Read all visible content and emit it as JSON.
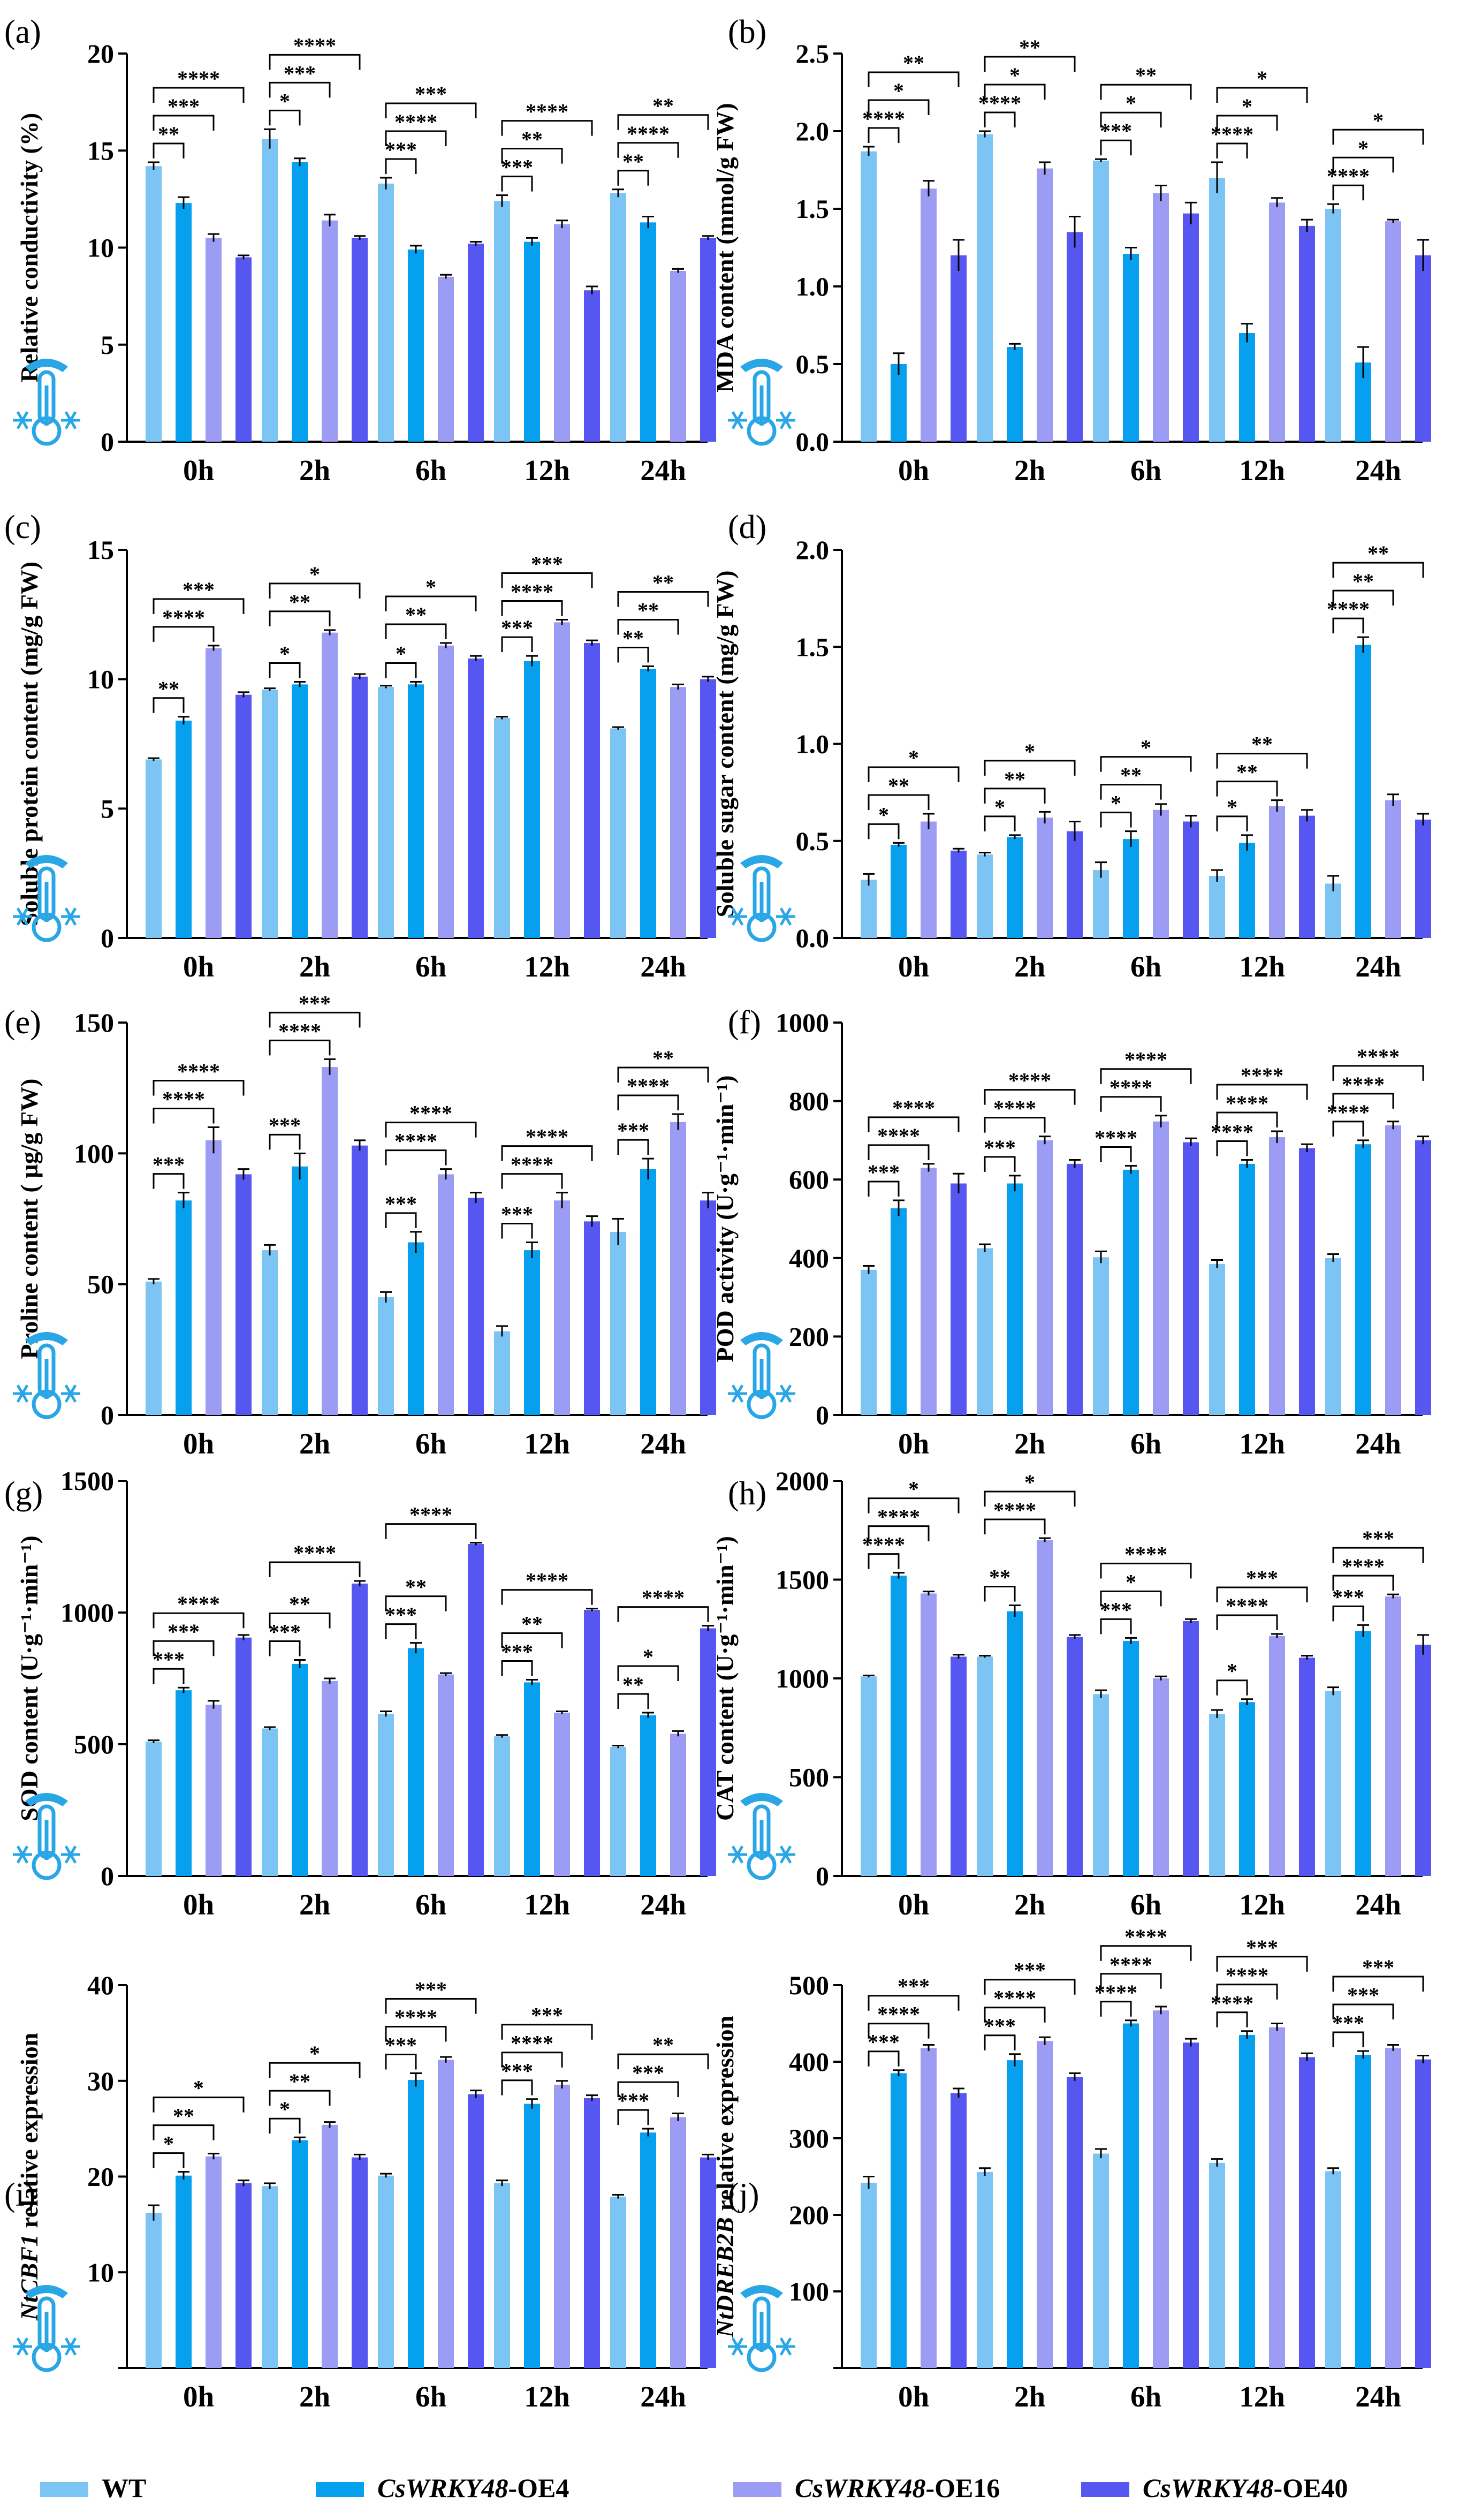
{
  "legend": [
    {
      "key": "wt",
      "label": "WT",
      "color": "#7cc4f4"
    },
    {
      "key": "oe4",
      "label_italic": "CsWRKY48",
      "label_rest": "-OE4",
      "color": "#06a0ee"
    },
    {
      "key": "oe16",
      "label_italic": "CsWRKY48",
      "label_rest": "-OE16",
      "color": "#9c9cf4"
    },
    {
      "key": "oe40",
      "label_italic": "CsWRKY48",
      "label_rest": "-OE40",
      "color": "#5656f0"
    }
  ],
  "chart_data": [
    {
      "panel": "(a)",
      "type": "bar",
      "ylabel": "Relative conductivity (%)",
      "ylim": [
        0,
        20
      ],
      "yticks": [
        0,
        5,
        10,
        15,
        20
      ],
      "categories": [
        "0h",
        "2h",
        "6h",
        "12h",
        "24h"
      ],
      "series": [
        {
          "name": "WT",
          "values": [
            14.2,
            15.6,
            13.3,
            12.4,
            12.8
          ],
          "errors": [
            0.2,
            0.5,
            0.3,
            0.3,
            0.2
          ]
        },
        {
          "name": "CsWRKY48-OE4",
          "values": [
            12.3,
            14.4,
            9.9,
            10.3,
            11.3
          ],
          "errors": [
            0.3,
            0.2,
            0.2,
            0.2,
            0.3
          ]
        },
        {
          "name": "CsWRKY48-OE16",
          "values": [
            10.5,
            11.4,
            8.5,
            11.2,
            8.8
          ],
          "errors": [
            0.2,
            0.3,
            0.1,
            0.2,
            0.1
          ]
        },
        {
          "name": "CsWRKY48-OE40",
          "values": [
            9.5,
            10.5,
            10.2,
            7.8,
            10.5
          ],
          "errors": [
            0.1,
            0.1,
            0.1,
            0.2,
            0.1
          ]
        }
      ],
      "significance": [
        [
          "**",
          "***",
          "****"
        ],
        [
          "*",
          "***",
          "****"
        ],
        [
          "***",
          "****",
          "***"
        ],
        [
          "***",
          "**",
          "****"
        ],
        [
          "**",
          "****",
          "**"
        ]
      ]
    },
    {
      "panel": "(b)",
      "type": "bar",
      "ylabel": "MDA content (mmol/g FW)",
      "ylim": [
        0,
        2.5
      ],
      "yticks": [
        "0.0",
        "0.5",
        "1.0",
        "1.5",
        "2.0",
        "2.5"
      ],
      "categories": [
        "0h",
        "2h",
        "6h",
        "12h",
        "24h"
      ],
      "series": [
        {
          "name": "WT",
          "values": [
            1.87,
            1.98,
            1.81,
            1.7,
            1.5
          ],
          "errors": [
            0.03,
            0.02,
            0.01,
            0.1,
            0.03
          ]
        },
        {
          "name": "CsWRKY48-OE4",
          "values": [
            0.5,
            0.61,
            1.21,
            0.7,
            0.51
          ],
          "errors": [
            0.07,
            0.02,
            0.04,
            0.06,
            0.1
          ]
        },
        {
          "name": "CsWRKY48-OE16",
          "values": [
            1.63,
            1.76,
            1.6,
            1.54,
            1.42
          ],
          "errors": [
            0.05,
            0.04,
            0.05,
            0.03,
            0.01
          ]
        },
        {
          "name": "CsWRKY48-OE40",
          "values": [
            1.2,
            1.35,
            1.47,
            1.39,
            1.2
          ],
          "errors": [
            0.1,
            0.1,
            0.07,
            0.04,
            0.1
          ]
        }
      ],
      "significance": [
        [
          "****",
          "*",
          "**"
        ],
        [
          "****",
          "*",
          "**"
        ],
        [
          "***",
          "*",
          "**"
        ],
        [
          "****",
          "*",
          "*"
        ],
        [
          "****",
          "*",
          "*"
        ]
      ]
    },
    {
      "panel": "(c)",
      "type": "bar",
      "ylabel": "Soluble protein content (mg/g FW)",
      "ylim": [
        0,
        15
      ],
      "yticks": [
        0,
        5,
        10,
        15
      ],
      "categories": [
        "0h",
        "2h",
        "6h",
        "12h",
        "24h"
      ],
      "series": [
        {
          "name": "WT",
          "values": [
            6.9,
            9.6,
            9.7,
            8.5,
            8.1
          ],
          "errors": [
            0.05,
            0.05,
            0.05,
            0.05,
            0.05
          ]
        },
        {
          "name": "CsWRKY48-OE4",
          "values": [
            8.4,
            9.8,
            9.8,
            10.7,
            10.4
          ],
          "errors": [
            0.15,
            0.1,
            0.1,
            0.2,
            0.1
          ]
        },
        {
          "name": "CsWRKY48-OE16",
          "values": [
            11.2,
            11.8,
            11.3,
            12.2,
            9.7
          ],
          "errors": [
            0.1,
            0.1,
            0.1,
            0.1,
            0.1
          ]
        },
        {
          "name": "CsWRKY48-OE40",
          "values": [
            9.4,
            10.1,
            10.8,
            11.4,
            10.0
          ],
          "errors": [
            0.1,
            0.1,
            0.1,
            0.1,
            0.1
          ]
        }
      ],
      "significance": [
        [
          "**",
          "****",
          "***"
        ],
        [
          "*",
          "**",
          "*"
        ],
        [
          "*",
          "**",
          "*"
        ],
        [
          "***",
          "****",
          "***"
        ],
        [
          "**",
          "**",
          "**"
        ]
      ]
    },
    {
      "panel": "(d)",
      "type": "bar",
      "ylabel": "Soluble sugar content (mg/g FW)",
      "ylim": [
        0,
        2.0
      ],
      "yticks": [
        "0.0",
        "0.5",
        "1.0",
        "1.5",
        "2.0"
      ],
      "categories": [
        "0h",
        "2h",
        "6h",
        "12h",
        "24h"
      ],
      "series": [
        {
          "name": "WT",
          "values": [
            0.3,
            0.43,
            0.35,
            0.32,
            0.28
          ],
          "errors": [
            0.03,
            0.01,
            0.04,
            0.03,
            0.04
          ]
        },
        {
          "name": "CsWRKY48-OE4",
          "values": [
            0.48,
            0.52,
            0.51,
            0.49,
            1.51
          ],
          "errors": [
            0.01,
            0.01,
            0.04,
            0.04,
            0.04
          ]
        },
        {
          "name": "CsWRKY48-OE16",
          "values": [
            0.6,
            0.62,
            0.66,
            0.68,
            0.71
          ],
          "errors": [
            0.04,
            0.03,
            0.03,
            0.03,
            0.03
          ]
        },
        {
          "name": "CsWRKY48-OE40",
          "values": [
            0.45,
            0.55,
            0.6,
            0.63,
            0.61
          ],
          "errors": [
            0.01,
            0.05,
            0.03,
            0.03,
            0.03
          ]
        }
      ],
      "significance": [
        [
          "*",
          "**",
          "*"
        ],
        [
          "*",
          "**",
          "*"
        ],
        [
          "*",
          "**",
          "*"
        ],
        [
          "*",
          "**",
          "**"
        ],
        [
          "****",
          "**",
          "**"
        ]
      ]
    },
    {
      "panel": "(e)",
      "type": "bar",
      "ylabel": "Proline content ( µg/g FW)",
      "ylim": [
        0,
        150
      ],
      "yticks": [
        0,
        50,
        100,
        150
      ],
      "categories": [
        "0h",
        "2h",
        "6h",
        "12h",
        "24h"
      ],
      "series": [
        {
          "name": "WT",
          "values": [
            51,
            63,
            45,
            32,
            70
          ],
          "errors": [
            1,
            2,
            2,
            2,
            5
          ]
        },
        {
          "name": "CsWRKY48-OE4",
          "values": [
            82,
            95,
            66,
            63,
            94
          ],
          "errors": [
            3,
            5,
            4,
            3,
            4
          ]
        },
        {
          "name": "CsWRKY48-OE16",
          "values": [
            105,
            133,
            92,
            82,
            112
          ],
          "errors": [
            5,
            3,
            2,
            3,
            3
          ]
        },
        {
          "name": "CsWRKY48-OE40",
          "values": [
            92,
            103,
            83,
            74,
            82
          ],
          "errors": [
            2,
            2,
            2,
            2,
            3
          ]
        }
      ],
      "significance": [
        [
          "***",
          "****",
          "****"
        ],
        [
          "***",
          "****",
          "***"
        ],
        [
          "***",
          "****",
          "****"
        ],
        [
          "***",
          "****",
          "****"
        ],
        [
          "***",
          "****",
          "**"
        ]
      ]
    },
    {
      "panel": "(f)",
      "type": "bar",
      "ylabel": "POD activity (U·g⁻¹·min⁻¹)",
      "ylim": [
        0,
        1000
      ],
      "yticks": [
        0,
        200,
        400,
        600,
        800,
        1000
      ],
      "categories": [
        "0h",
        "2h",
        "6h",
        "12h",
        "24h"
      ],
      "series": [
        {
          "name": "WT",
          "values": [
            370,
            425,
            402,
            385,
            400
          ],
          "errors": [
            10,
            10,
            15,
            10,
            10
          ]
        },
        {
          "name": "CsWRKY48-OE4",
          "values": [
            527,
            590,
            625,
            640,
            690
          ],
          "errors": [
            20,
            20,
            10,
            10,
            10
          ]
        },
        {
          "name": "CsWRKY48-OE16",
          "values": [
            630,
            700,
            748,
            708,
            738
          ],
          "errors": [
            10,
            10,
            15,
            15,
            10
          ]
        },
        {
          "name": "CsWRKY48-OE40",
          "values": [
            590,
            640,
            695,
            680,
            700
          ],
          "errors": [
            25,
            10,
            10,
            10,
            10
          ]
        }
      ],
      "significance": [
        [
          "***",
          "****",
          "****"
        ],
        [
          "***",
          "****",
          "****"
        ],
        [
          "****",
          "****",
          "****"
        ],
        [
          "****",
          "****",
          "****"
        ],
        [
          "****",
          "****",
          "****"
        ]
      ]
    },
    {
      "panel": "(g)",
      "type": "bar",
      "ylabel": "SOD content (U·g⁻¹·min⁻¹)",
      "ylim": [
        0,
        1500
      ],
      "yticks": [
        0,
        500,
        1000,
        1500
      ],
      "categories": [
        "0h",
        "2h",
        "6h",
        "12h",
        "24h"
      ],
      "series": [
        {
          "name": "WT",
          "values": [
            510,
            560,
            615,
            530,
            490
          ],
          "errors": [
            5,
            5,
            10,
            5,
            5
          ]
        },
        {
          "name": "CsWRKY48-OE4",
          "values": [
            705,
            805,
            865,
            735,
            610
          ],
          "errors": [
            10,
            15,
            20,
            10,
            10
          ]
        },
        {
          "name": "CsWRKY48-OE16",
          "values": [
            650,
            740,
            765,
            620,
            540
          ],
          "errors": [
            15,
            10,
            5,
            5,
            10
          ]
        },
        {
          "name": "CsWRKY48-OE40",
          "values": [
            905,
            1110,
            1260,
            1010,
            940
          ],
          "errors": [
            10,
            10,
            5,
            5,
            10
          ]
        }
      ],
      "significance": [
        [
          "***",
          "***",
          "****"
        ],
        [
          "***",
          "**",
          "****"
        ],
        [
          "***",
          "**",
          "****"
        ],
        [
          "***",
          "**",
          "****"
        ],
        [
          "**",
          "*",
          "****"
        ]
      ]
    },
    {
      "panel": "(h)",
      "type": "bar",
      "ylabel": "CAT content (U·g⁻¹·min⁻¹)",
      "ylim": [
        0,
        2000
      ],
      "yticks": [
        0,
        500,
        1000,
        1500,
        2000
      ],
      "categories": [
        "0h",
        "2h",
        "6h",
        "12h",
        "24h"
      ],
      "series": [
        {
          "name": "WT",
          "values": [
            1010,
            1110,
            920,
            820,
            935
          ],
          "errors": [
            5,
            5,
            20,
            20,
            20
          ]
        },
        {
          "name": "CsWRKY48-OE4",
          "values": [
            1520,
            1340,
            1190,
            880,
            1240
          ],
          "errors": [
            15,
            30,
            15,
            15,
            30
          ]
        },
        {
          "name": "CsWRKY48-OE16",
          "values": [
            1430,
            1700,
            1000,
            1215,
            1415
          ],
          "errors": [
            10,
            10,
            10,
            10,
            10
          ]
        },
        {
          "name": "CsWRKY48-OE40",
          "values": [
            1110,
            1210,
            1290,
            1105,
            1170
          ],
          "errors": [
            10,
            10,
            10,
            10,
            50
          ]
        }
      ],
      "significance": [
        [
          "****",
          "****",
          "*"
        ],
        [
          "**",
          "****",
          "*"
        ],
        [
          "***",
          "*",
          "****"
        ],
        [
          "*",
          "****",
          "***"
        ],
        [
          "***",
          "****",
          "***"
        ]
      ]
    },
    {
      "panel": "(i)",
      "type": "bar",
      "ylabel_italic": "NtCBF1",
      "ylabel_rest": " relative expression",
      "ylim": [
        0,
        40
      ],
      "yticks": [
        10,
        20,
        30,
        40
      ],
      "ymin_tick": 10,
      "categories": [
        "0h",
        "2h",
        "6h",
        "12h",
        "24h"
      ],
      "series": [
        {
          "name": "WT",
          "values": [
            16.2,
            19.0,
            20.1,
            19.3,
            17.9
          ],
          "errors": [
            0.8,
            0.3,
            0.2,
            0.3,
            0.2
          ]
        },
        {
          "name": "CsWRKY48-OE4",
          "values": [
            20.1,
            23.8,
            30.1,
            27.6,
            24.6
          ],
          "errors": [
            0.4,
            0.3,
            0.7,
            0.5,
            0.4
          ]
        },
        {
          "name": "CsWRKY48-OE16",
          "values": [
            22.1,
            25.4,
            32.2,
            29.6,
            26.2
          ],
          "errors": [
            0.3,
            0.3,
            0.3,
            0.4,
            0.4
          ]
        },
        {
          "name": "CsWRKY48-OE40",
          "values": [
            19.3,
            22.0,
            28.6,
            28.2,
            22.0
          ],
          "errors": [
            0.3,
            0.3,
            0.4,
            0.3,
            0.3
          ]
        }
      ],
      "significance": [
        [
          "*",
          "**",
          "*"
        ],
        [
          "*",
          "**",
          "*"
        ],
        [
          "***",
          "****",
          "***"
        ],
        [
          "***",
          "****",
          "***"
        ],
        [
          "***",
          "***",
          "**"
        ]
      ]
    },
    {
      "panel": "(j)",
      "type": "bar",
      "ylabel_italic": "NtDREB2B",
      "ylabel_rest": " relative expression",
      "ylim": [
        0,
        500
      ],
      "yticks": [
        100,
        200,
        300,
        400,
        500
      ],
      "ymin_tick": 100,
      "categories": [
        "0h",
        "2h",
        "6h",
        "12h",
        "24h"
      ],
      "series": [
        {
          "name": "WT",
          "values": [
            242,
            256,
            280,
            268,
            257
          ],
          "errors": [
            8,
            5,
            6,
            5,
            4
          ]
        },
        {
          "name": "CsWRKY48-OE4",
          "values": [
            385,
            402,
            450,
            435,
            409
          ],
          "errors": [
            4,
            8,
            4,
            5,
            5
          ]
        },
        {
          "name": "CsWRKY48-OE16",
          "values": [
            418,
            427,
            467,
            445,
            418
          ],
          "errors": [
            4,
            5,
            5,
            5,
            4
          ]
        },
        {
          "name": "CsWRKY48-OE40",
          "values": [
            359,
            380,
            425,
            406,
            403
          ],
          "errors": [
            6,
            5,
            5,
            5,
            5
          ]
        }
      ],
      "significance": [
        [
          "***",
          "****",
          "***"
        ],
        [
          "***",
          "****",
          "***"
        ],
        [
          "****",
          "****",
          "****"
        ],
        [
          "****",
          "****",
          "***"
        ],
        [
          "***",
          "***",
          "***"
        ]
      ]
    }
  ]
}
